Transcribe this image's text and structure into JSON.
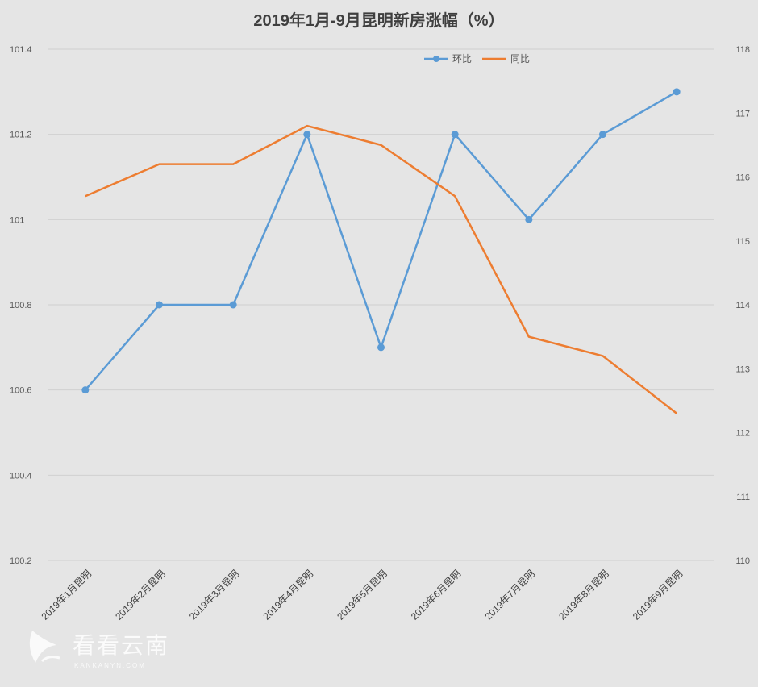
{
  "chart_data": {
    "type": "line",
    "title": "2019年1月-9月昆明新房涨幅（%）",
    "categories": [
      "2019年1月昆明",
      "2019年2月昆明",
      "2019年3月昆明",
      "2019年4月昆明",
      "2019年5月昆明",
      "2019年6月昆明",
      "2019年7月昆明",
      "2019年8月昆明",
      "2019年9月昆明"
    ],
    "series": [
      {
        "name": "环比",
        "axis": "left",
        "color": "#5b9bd5",
        "markers": true,
        "values": [
          100.6,
          100.8,
          100.8,
          101.2,
          100.7,
          101.2,
          101.0,
          101.2,
          101.3
        ]
      },
      {
        "name": "同比",
        "axis": "right",
        "color": "#ed7d31",
        "markers": false,
        "values": [
          115.7,
          116.2,
          116.2,
          116.8,
          116.5,
          115.7,
          113.5,
          113.2,
          112.3
        ]
      }
    ],
    "y_left": {
      "min": 100.2,
      "max": 101.4,
      "ticks": [
        "100.2",
        "100.4",
        "100.6",
        "100.8",
        "101",
        "101.2",
        "101.4"
      ]
    },
    "y_right": {
      "min": 110,
      "max": 118,
      "ticks": [
        "110",
        "111",
        "112",
        "113",
        "114",
        "115",
        "116",
        "117",
        "118"
      ]
    },
    "grid": true,
    "legend_position": "top-right"
  },
  "watermark": {
    "text": "看看云南",
    "subtext": "KANKANYN.COM"
  }
}
